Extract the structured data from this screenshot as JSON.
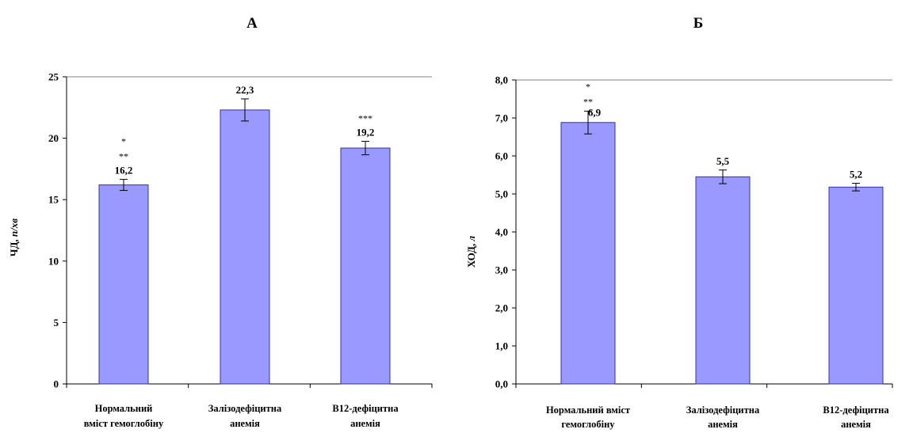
{
  "colors": {
    "bar": "#9999ff",
    "bar_stroke": "#333399",
    "axis": "#000000",
    "grid": "#808080"
  },
  "chart_data": [
    {
      "type": "bar",
      "title": "А",
      "ylabel_main": "ЧД, ",
      "ylabel_unit": "п/хв",
      "ylim": [
        0,
        25
      ],
      "ticks": [
        "0",
        "5",
        "10",
        "15",
        "20",
        "25"
      ],
      "tick_values": [
        0,
        5,
        10,
        15,
        20,
        25
      ],
      "grid": "top line only",
      "categories": [
        [
          "Нормальний",
          "вміст гемоглобіну"
        ],
        [
          "Залізодефіцитна",
          "анемія"
        ],
        [
          "В12-дефіцитна",
          "анемія"
        ]
      ],
      "values": [
        16.2,
        22.3,
        19.2
      ],
      "value_labels": [
        "16,2",
        "22,3",
        "19,2"
      ],
      "errors": [
        0.45,
        0.9,
        0.55
      ],
      "significance": [
        [
          "*",
          "**"
        ],
        [],
        [
          "***"
        ]
      ]
    },
    {
      "type": "bar",
      "title": "Б",
      "ylabel_main": "ХОД, ",
      "ylabel_unit": "л",
      "ylim": [
        0,
        8
      ],
      "ticks": [
        "0,0",
        "1,0",
        "2,0",
        "3,0",
        "4,0",
        "5,0",
        "6,0",
        "7,0",
        "8,0"
      ],
      "tick_values": [
        0,
        1,
        2,
        3,
        4,
        5,
        6,
        7,
        8
      ],
      "grid": "top line only",
      "categories": [
        [
          "Нормальний вміст",
          "гемоглобіну"
        ],
        [
          "Залізодефіцитна",
          "анемія"
        ],
        [
          "В12-дефіцитна",
          "анемія"
        ]
      ],
      "values": [
        6.88,
        5.45,
        5.18
      ],
      "value_labels": [
        "6,9",
        "5,5",
        "5,2"
      ],
      "errors": [
        0.3,
        0.18,
        0.1
      ],
      "significance": [
        [
          "*",
          "**"
        ],
        [],
        []
      ]
    }
  ]
}
